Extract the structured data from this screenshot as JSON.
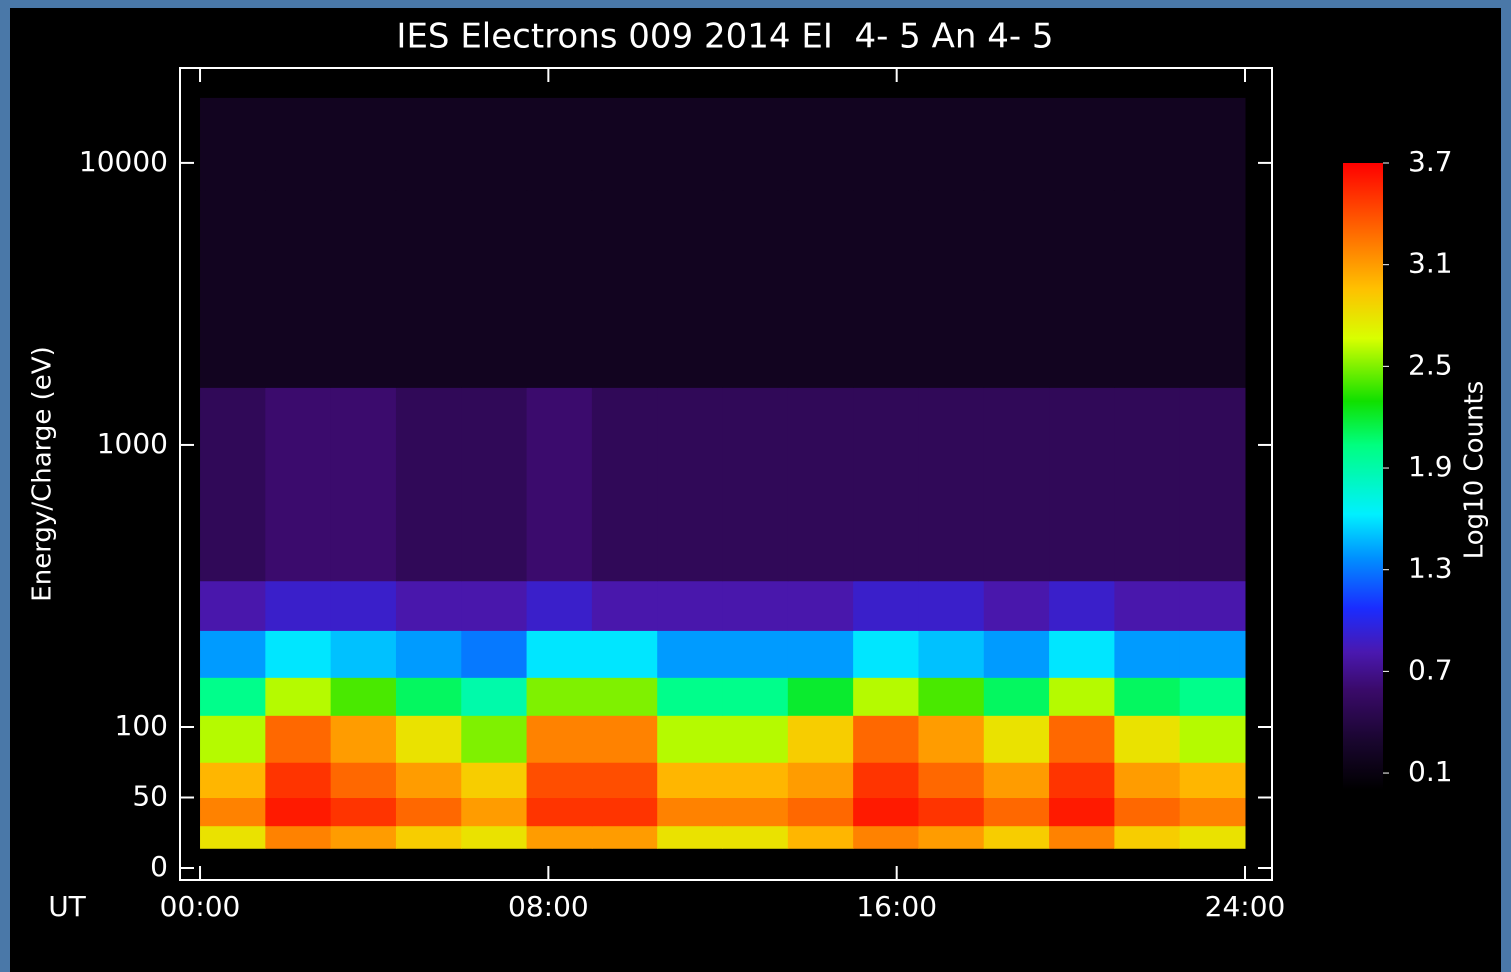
{
  "chart_data": {
    "type": "heatmap",
    "title": "IES Electrons 009 2014 EI  4- 5 An 4- 5",
    "ylabel": "Energy/Charge (eV)",
    "xlabel": "UT",
    "yscale": "symlog",
    "linthresh": 100,
    "xlim": [
      -0.46,
      24.62
    ],
    "xticks": [
      {
        "value": 0,
        "label": "00:00"
      },
      {
        "value": 8,
        "label": "08:00"
      },
      {
        "value": 16,
        "label": "16:00"
      },
      {
        "value": 24,
        "label": "24:00"
      }
    ],
    "ylim": [
      -8.5,
      21700
    ],
    "yticks": [
      0,
      50,
      100,
      1000,
      10000
    ],
    "x_edges": [
      0,
      1.5,
      3,
      4.5,
      6,
      7.5,
      9,
      10.5,
      12,
      13.5,
      15,
      16.5,
      18,
      19.5,
      21,
      22.5,
      24
    ],
    "y_edges": [
      14,
      30,
      50,
      75,
      110,
      150,
      220,
      330,
      1600,
      8000,
      17000
    ],
    "z": [
      [
        2.8,
        3.2,
        3.1,
        2.9,
        2.8,
        3.1,
        3.1,
        2.8,
        2.8,
        3.0,
        3.2,
        3.1,
        2.9,
        3.2,
        2.9,
        2.8
      ],
      [
        3.2,
        3.6,
        3.5,
        3.3,
        3.1,
        3.5,
        3.5,
        3.2,
        3.2,
        3.3,
        3.6,
        3.5,
        3.3,
        3.6,
        3.3,
        3.2
      ],
      [
        3.0,
        3.5,
        3.3,
        3.1,
        2.9,
        3.4,
        3.4,
        3.0,
        3.0,
        3.1,
        3.5,
        3.3,
        3.1,
        3.5,
        3.1,
        3.0
      ],
      [
        2.6,
        3.3,
        3.1,
        2.8,
        2.5,
        3.2,
        3.2,
        2.6,
        2.6,
        2.9,
        3.3,
        3.1,
        2.8,
        3.3,
        2.8,
        2.6
      ],
      [
        2.0,
        2.6,
        2.4,
        2.1,
        1.9,
        2.5,
        2.5,
        2.0,
        2.0,
        2.2,
        2.6,
        2.4,
        2.1,
        2.6,
        2.1,
        2.0
      ],
      [
        1.4,
        1.6,
        1.5,
        1.4,
        1.3,
        1.6,
        1.6,
        1.4,
        1.4,
        1.4,
        1.6,
        1.5,
        1.4,
        1.6,
        1.4,
        1.4
      ],
      [
        0.8,
        0.9,
        0.9,
        0.8,
        0.8,
        0.9,
        0.8,
        0.8,
        0.8,
        0.8,
        0.9,
        0.9,
        0.8,
        0.9,
        0.8,
        0.8
      ],
      [
        0.5,
        0.6,
        0.6,
        0.5,
        0.5,
        0.6,
        0.5,
        0.5,
        0.5,
        0.5,
        0.5,
        0.5,
        0.5,
        0.5,
        0.5,
        0.5
      ],
      [
        0.2,
        0.2,
        0.2,
        0.2,
        0.2,
        0.2,
        0.2,
        0.2,
        0.2,
        0.2,
        0.2,
        0.2,
        0.2,
        0.2,
        0.2,
        0.2
      ],
      [
        0.2,
        0.2,
        0.2,
        0.2,
        0.2,
        0.2,
        0.2,
        0.2,
        0.2,
        0.2,
        0.2,
        0.2,
        0.2,
        0.2,
        0.2,
        0.2
      ]
    ],
    "colorbar": {
      "label": "Log10 Counts",
      "colormap": "rainbow",
      "lim": [
        0,
        3.7
      ],
      "ticks": [
        0.1,
        0.7,
        1.3,
        1.9,
        2.5,
        3.1,
        3.7
      ]
    }
  }
}
